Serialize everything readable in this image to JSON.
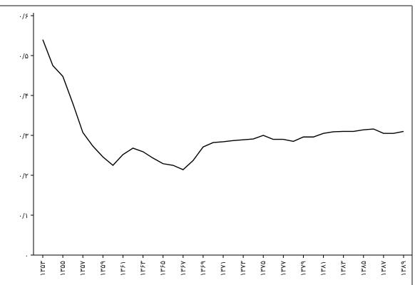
{
  "chart_data": {
    "type": "line",
    "categories": [
      "۱۳۵۳",
      null,
      "۱۳۵۵",
      null,
      "۱۳۵۷",
      null,
      "۱۳۵۹",
      null,
      "۱۳۶۱",
      null,
      "۱۳۶۳",
      null,
      "۱۳۶۵",
      null,
      "۱۳۶۷",
      null,
      "۱۳۶۹",
      null,
      "۱۳۷۱",
      null,
      "۱۳۷۳",
      null,
      "۱۳۷۵",
      null,
      "۱۳۷۷",
      null,
      "۱۳۷۹",
      null,
      "۱۳۸۱",
      null,
      "۱۳۸۳",
      null,
      "۱۳۸۵",
      null,
      "۱۳۸۷",
      null,
      "۱۳۸۹"
    ],
    "values": [
      0.54,
      0.475,
      0.448,
      0.38,
      0.307,
      0.273,
      0.246,
      0.225,
      0.252,
      0.268,
      0.259,
      0.243,
      0.229,
      0.225,
      0.214,
      0.237,
      0.271,
      0.282,
      0.284,
      0.287,
      0.289,
      0.291,
      0.3,
      0.29,
      0.29,
      0.285,
      0.296,
      0.296,
      0.305,
      0.309,
      0.31,
      0.31,
      0.314,
      0.316,
      0.305,
      0.305,
      0.31
    ],
    "color": "#000000",
    "ylim": [
      0,
      0.6
    ],
    "yticks": [
      {
        "value": 0,
        "label": "۰"
      },
      {
        "value": 0.1,
        "label": "۰/۱"
      },
      {
        "value": 0.2,
        "label": "۰/۲"
      },
      {
        "value": 0.3,
        "label": "۰/۳"
      },
      {
        "value": 0.4,
        "label": "۰/۴"
      },
      {
        "value": 0.5,
        "label": "۰/۵"
      },
      {
        "value": 0.6,
        "label": "۰/۶"
      }
    ]
  }
}
